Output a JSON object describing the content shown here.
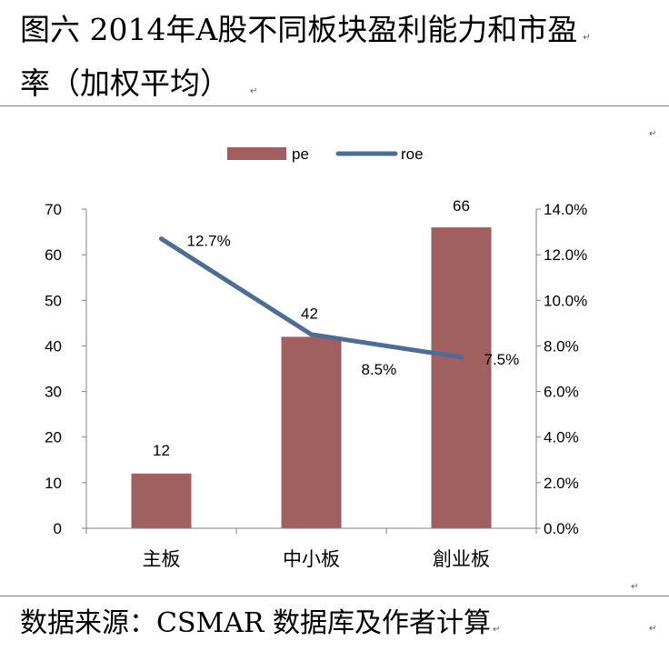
{
  "title_line1": "图六 2014年A股不同板块盈利能力和市盈",
  "title_line2": "率（加权平均）",
  "source": "数据来源：CSMAR 数据库及作者计算",
  "para_mark": "↵",
  "colors": {
    "bar": "#A0605F",
    "line": "#4F6D92",
    "axis": "#808080"
  },
  "chart_data": {
    "type": "bar",
    "categories": [
      "主板",
      "中小板",
      "創业板"
    ],
    "series": [
      {
        "name": "pe",
        "type": "bar",
        "axis": "left",
        "values": [
          12,
          42,
          66
        ],
        "labels": [
          "12",
          "42",
          "66"
        ]
      },
      {
        "name": "roe",
        "type": "line",
        "axis": "right",
        "values": [
          12.7,
          8.5,
          7.5
        ],
        "labels": [
          "12.7%",
          "8.5%",
          "7.5%"
        ]
      }
    ],
    "left_axis": {
      "min": 0,
      "max": 70,
      "step": 10,
      "ticks": [
        "0",
        "10",
        "20",
        "30",
        "40",
        "50",
        "60",
        "70"
      ]
    },
    "right_axis": {
      "min": 0,
      "max": 14,
      "step": 2,
      "ticks": [
        "0.0%",
        "2.0%",
        "4.0%",
        "6.0%",
        "8.0%",
        "10.0%",
        "12.0%",
        "14.0%"
      ]
    },
    "legend": [
      "pe",
      "roe"
    ],
    "legend_position": "top-center"
  }
}
